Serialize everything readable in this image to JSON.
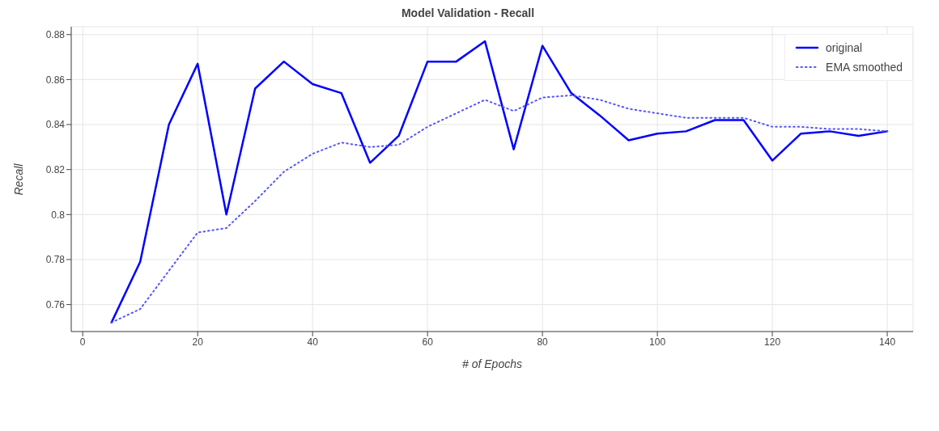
{
  "chart_data": {
    "type": "line",
    "title": "Model Validation - Recall",
    "xlabel": "# of Epochs",
    "ylabel": "Recall",
    "x": [
      5,
      10,
      15,
      20,
      25,
      30,
      35,
      40,
      45,
      50,
      55,
      60,
      65,
      70,
      75,
      80,
      85,
      90,
      95,
      100,
      105,
      110,
      115,
      120,
      125,
      130,
      135,
      140
    ],
    "series": [
      {
        "name": "original",
        "color": "#0000ff",
        "line_style": "solid",
        "values": [
          0.752,
          0.779,
          0.84,
          0.867,
          0.8,
          0.856,
          0.868,
          0.858,
          0.854,
          0.823,
          0.835,
          0.868,
          0.868,
          0.877,
          0.829,
          0.875,
          0.854,
          0.844,
          0.833,
          0.836,
          0.837,
          0.842,
          0.842,
          0.824,
          0.836,
          0.837,
          0.835,
          0.837
        ]
      },
      {
        "name": "EMA smoothed",
        "color": "#5555ff",
        "line_style": "dotted",
        "values": [
          0.752,
          0.758,
          0.775,
          0.792,
          0.794,
          0.806,
          0.819,
          0.827,
          0.832,
          0.83,
          0.831,
          0.839,
          0.845,
          0.851,
          0.846,
          0.852,
          0.853,
          0.851,
          0.847,
          0.845,
          0.843,
          0.843,
          0.843,
          0.839,
          0.839,
          0.838,
          0.838,
          0.837
        ]
      }
    ],
    "xlim": [
      -2,
      144.5
    ],
    "xticks": [
      0,
      20,
      40,
      60,
      80,
      100,
      120,
      140
    ],
    "ylim": [
      0.748,
      0.8835
    ],
    "yticks": [
      0.76,
      0.78,
      0.8,
      0.82,
      0.84,
      0.86,
      0.88
    ],
    "grid": true,
    "legend": "top right",
    "marker": "none"
  }
}
